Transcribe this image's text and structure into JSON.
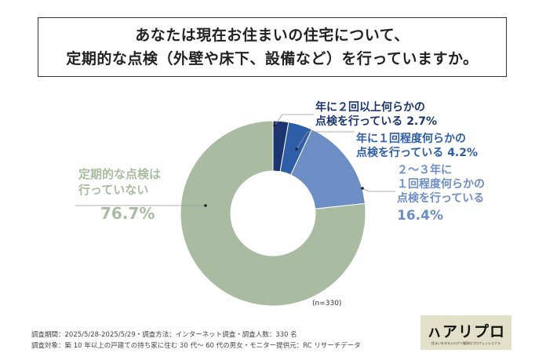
{
  "title_lines": [
    "あなたは現在お住まいの住宅について、",
    "定期的な点検（外壁や床下、設備など）を行っていますか。"
  ],
  "chart_data": {
    "type": "pie",
    "donut": true,
    "start": "top-clockwise",
    "slices": [
      {
        "label_lines": [
          "年に２回以上何らかの",
          "点検を行っている"
        ],
        "value": 2.7,
        "value_label": "2.7%",
        "color": "#1c3570"
      },
      {
        "label_lines": [
          "年に１回程度何らかの",
          "点検を行っている"
        ],
        "value": 4.2,
        "value_label": "4.2%",
        "color": "#2f5ea8"
      },
      {
        "label_lines": [
          "２～３年に",
          "１回程度何らかの",
          "点検を行っている"
        ],
        "value": 16.4,
        "value_label": "16.4%",
        "color": "#6d8dc5"
      },
      {
        "label_lines": [
          "定期的な点検は",
          "行っていない"
        ],
        "value": 76.7,
        "value_label": "76.7%",
        "color": "#a9bba0"
      }
    ],
    "note": "(n=330)"
  },
  "footer": {
    "line1": "調査期間：2025/5/28-2025/5/29・調査方法：インターネット調査・調査人数：330 名",
    "line2": "調査対象：築 10 年以上の戸建ての持ち家に住む 30 代～ 60 代の男女・モニター提供元：RC リサーチデータ"
  },
  "logo": {
    "name": "ㇵアリプロ",
    "tagline": "住まいを守るシロアリ駆除のプロフェッショナル"
  }
}
